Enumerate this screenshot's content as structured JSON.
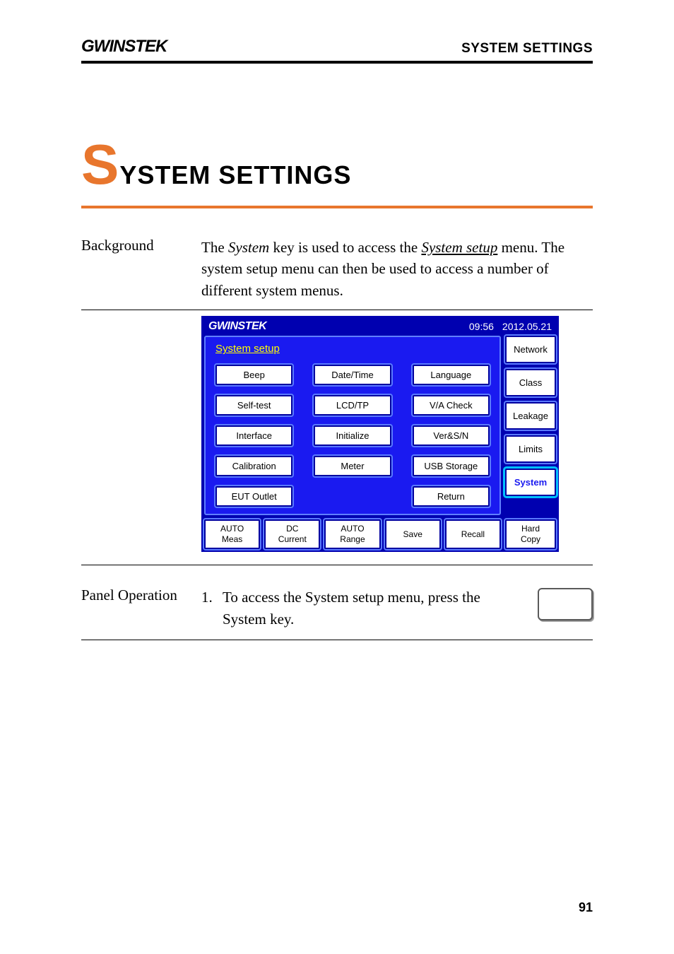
{
  "header": {
    "brand": "GWINSTEK",
    "right": "SYSTEM SETTINGS"
  },
  "chapter": {
    "initial": "S",
    "rest": "YSTEM SETTINGS",
    "accent_color": "#e8762d"
  },
  "background": {
    "label": "Background",
    "text_pre": "The ",
    "system_word": "System",
    "text_mid": " key is used to access the ",
    "link": "System setup",
    "text_post": " menu. The system setup menu can then be used to access a number of different system menus."
  },
  "screen": {
    "brand": "GWINSTEK",
    "time": "09:56",
    "date": "2012.05.21",
    "panel_title": "System setup",
    "grid": [
      [
        "Beep",
        "Date/Time",
        "Language"
      ],
      [
        "Self-test",
        "LCD/TP",
        "V/A Check"
      ],
      [
        "Interface",
        "Initialize",
        "Ver&S/N"
      ],
      [
        "Calibration",
        "Meter",
        "USB Storage"
      ],
      [
        "EUT Outlet",
        "",
        "Return"
      ]
    ],
    "side": [
      "Network",
      "Class",
      "Leakage",
      "Limits",
      "System"
    ],
    "side_active_index": 4,
    "bottom_left": [
      {
        "l1": "AUTO",
        "l2": "Meas"
      },
      {
        "l1": "DC",
        "l2": "Current"
      },
      {
        "l1": "AUTO",
        "l2": "Range"
      },
      {
        "l1": "Save",
        "l2": ""
      },
      {
        "l1": "Recall",
        "l2": ""
      }
    ],
    "bottom_right": {
      "l1": "Hard",
      "l2": "Copy"
    },
    "colors": {
      "outer_bg": "#0000b0",
      "panel_bg": "#1a1af0",
      "panel_border": "#6080ff",
      "btn_bg": "#ffffff",
      "btn_border_inner": "#0000a0",
      "btn_border_outer": "#5a7aff",
      "title_color": "#ffff00",
      "active_glow": "#00c0ff"
    }
  },
  "panel_op": {
    "label": "Panel Operation",
    "num": "1.",
    "text_pre": "To access the ",
    "link": "System setup",
    "text_mid": " menu, press the ",
    "key_word": "System",
    "text_post": " key."
  },
  "page_number": "91"
}
